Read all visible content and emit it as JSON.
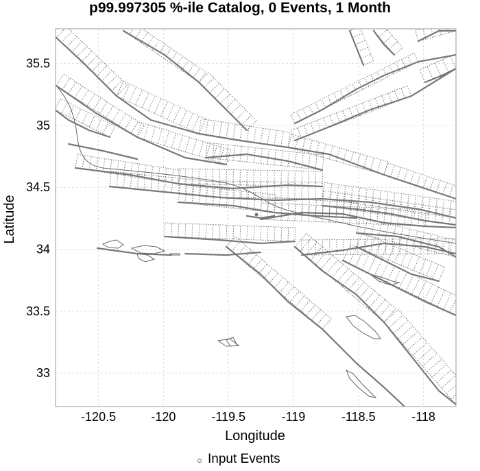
{
  "title": "p99.997305 %-ile Catalog, 0 Events, 1 Month",
  "chart_data": {
    "type": "scatter",
    "xlabel": "Longitude",
    "ylabel": "Latitude",
    "xlim": [
      -120.83,
      -117.75
    ],
    "ylim": [
      32.73,
      35.78
    ],
    "x_ticks": [
      -120.5,
      -120,
      -119.5,
      -119,
      -118.5,
      -118
    ],
    "x_tick_labels": [
      "-120.5",
      "-120",
      "-119.5",
      "-119",
      "-118.5",
      "-118"
    ],
    "y_ticks": [
      33,
      33.5,
      34,
      34.5,
      35,
      35.5
    ],
    "y_tick_labels": [
      "33",
      "33.5",
      "34",
      "34.5",
      "35",
      "35.5"
    ],
    "grid": true,
    "legend_position": "bottom-center",
    "series": [
      {
        "name": "Input Events",
        "marker": "open-circle",
        "points": []
      }
    ],
    "fault_color": "#777777",
    "coast_color": "#666666",
    "grid_color": "#dddddd"
  }
}
